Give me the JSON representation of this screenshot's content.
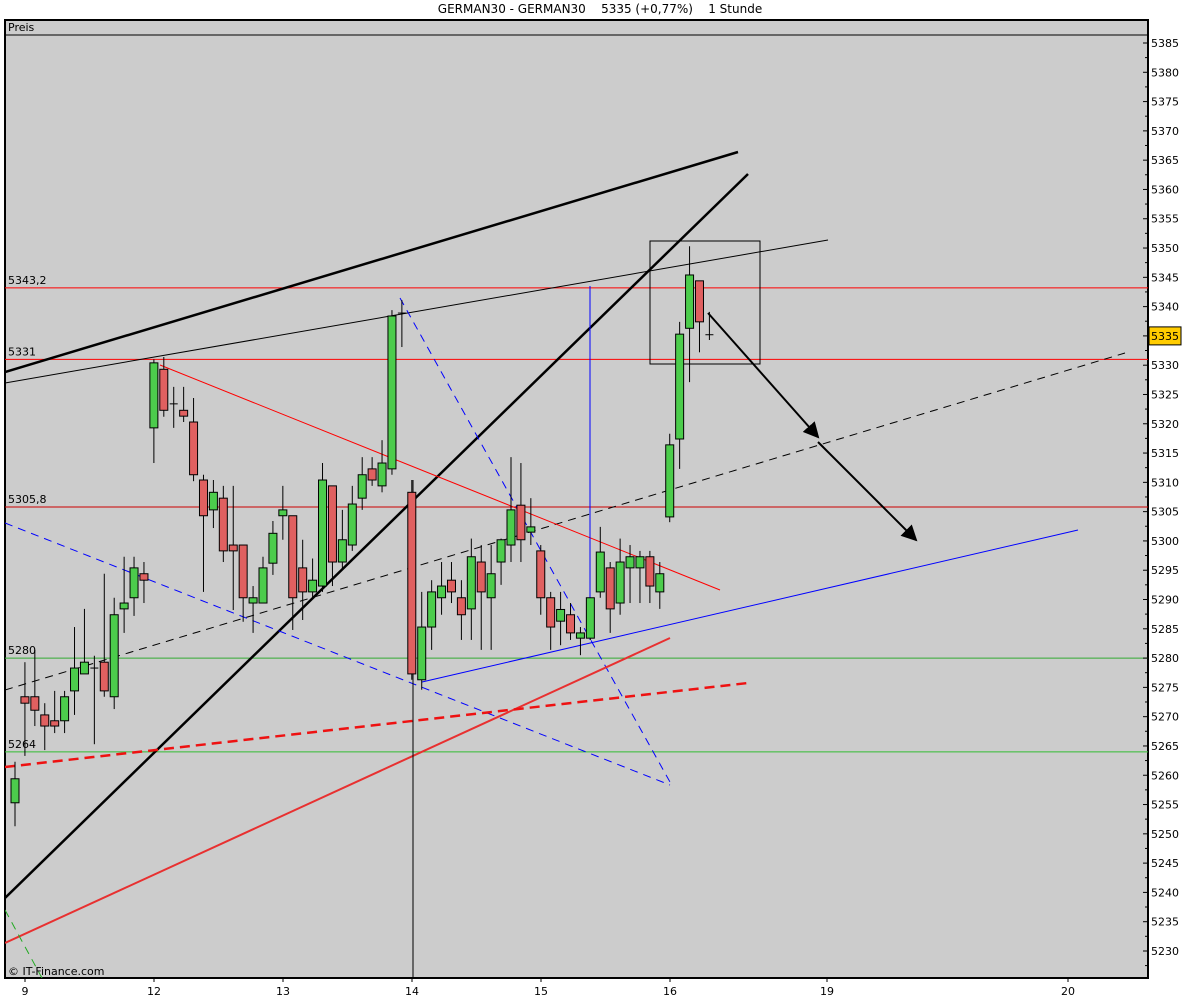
{
  "header": {
    "title": "GERMAN30 - GERMAN30    5335 (+0,77%)    1 Stunde"
  },
  "panel_label": "Preis",
  "copyright": "© IT-Finance.com",
  "colors": {
    "background": "#cccccc",
    "up_candle": "#4ccc4c",
    "down_candle": "#e06060",
    "last_price_badge": "#ffcc00",
    "resistance": "#ff0000",
    "support": "#33aa33",
    "trend_blue": "#0000ff"
  },
  "chart_data": {
    "type": "candlestick",
    "title": "GERMAN30 - GERMAN30",
    "timeframe": "1 Stunde",
    "last_price": "5335",
    "change": "+0,77%",
    "ylim": [
      5226,
      5389
    ],
    "y_ticks": [
      "5385",
      "5380",
      "5375",
      "5370",
      "5365",
      "5360",
      "5355",
      "5350",
      "5345",
      "5340",
      "5335",
      "5330",
      "5325",
      "5320",
      "5315",
      "5310",
      "5305",
      "5300",
      "5295",
      "5290",
      "5285",
      "5280",
      "5275",
      "5270",
      "5265",
      "5260",
      "5255",
      "5250",
      "5245",
      "5240",
      "5235",
      "5230"
    ],
    "x_ticks": [
      "9",
      "12",
      "13",
      "14",
      "15",
      "16",
      "19",
      "20"
    ],
    "grid": false,
    "horizontal_levels": [
      {
        "label": "5343,2",
        "value": 5343.2,
        "color": "#ff0000"
      },
      {
        "label": "5331",
        "value": 5331,
        "color": "#ff0000"
      },
      {
        "label": "5305,8",
        "value": 5305.8,
        "color": "#cc0000"
      },
      {
        "label": "5280",
        "value": 5280,
        "color": "#33aa33"
      },
      {
        "label": "5264",
        "value": 5264,
        "color": "#33bb33"
      }
    ],
    "ohlc": [
      [
        5255.3,
        5262.3,
        5251.3,
        5259.4
      ],
      [
        5273.4,
        5279.3,
        5263.3,
        5272.3
      ],
      [
        5273.4,
        5281.4,
        5268.4,
        5271.1
      ],
      [
        5270.3,
        5272.3,
        5264.3,
        5268.4
      ],
      [
        5269.3,
        5274.4,
        5267.2,
        5268.4
      ],
      [
        5269.3,
        5274.4,
        5267.2,
        5273.4
      ],
      [
        5274.4,
        5285.3,
        5270.3,
        5278.3
      ],
      [
        5277.3,
        5288.4,
        5277.3,
        5279.3
      ],
      [
        5278.3,
        5280.4,
        5265.3,
        5278.3
      ],
      [
        5279.3,
        5294.4,
        5273.4,
        5274.4
      ],
      [
        5273.4,
        5290.3,
        5271.3,
        5287.4
      ],
      [
        5288.4,
        5297.3,
        5284.3,
        5289.4
      ],
      [
        5290.3,
        5297.3,
        5287.2,
        5295.4
      ],
      [
        5294.4,
        5296.4,
        5289.4,
        5293.3
      ],
      [
        5319.3,
        5331.0,
        5313.3,
        5330.4
      ],
      [
        5329.3,
        5331.4,
        5321.2,
        5322.3
      ],
      [
        5323.4,
        5326.3,
        5319.3,
        5323.4
      ],
      [
        5322.3,
        5326.3,
        5320.3,
        5321.3
      ],
      [
        5320.3,
        5324.4,
        5310.2,
        5311.3
      ],
      [
        5310.4,
        5311.3,
        5291.3,
        5304.3
      ],
      [
        5305.3,
        5310.4,
        5302.2,
        5308.3
      ],
      [
        5307.3,
        5309.4,
        5296.4,
        5298.3
      ],
      [
        5299.3,
        5309.4,
        5288.2,
        5298.3
      ],
      [
        5299.3,
        5299.3,
        5286.2,
        5290.3
      ],
      [
        5289.4,
        5292.3,
        5284.3,
        5290.3
      ],
      [
        5289.4,
        5297.3,
        5289.4,
        5295.4
      ],
      [
        5296.2,
        5303.4,
        5294.2,
        5301.3
      ],
      [
        5304.3,
        5309.4,
        5300.2,
        5305.3
      ],
      [
        5304.3,
        5304.3,
        5284.8,
        5290.3
      ],
      [
        5295.4,
        5300.2,
        5286.5,
        5291.3
      ],
      [
        5291.3,
        5297.0,
        5290.0,
        5293.3
      ],
      [
        5292.3,
        5313.3,
        5291.3,
        5310.4
      ],
      [
        5309.4,
        5309.4,
        5292.3,
        5296.4
      ],
      [
        5296.4,
        5305.3,
        5295.2,
        5300.2
      ],
      [
        5299.3,
        5309.4,
        5298.3,
        5306.3
      ],
      [
        5307.3,
        5314.3,
        5305.3,
        5311.3
      ],
      [
        5312.3,
        5314.3,
        5309.4,
        5310.4
      ],
      [
        5309.4,
        5317.2,
        5308.3,
        5313.3
      ],
      [
        5312.3,
        5339.4,
        5311.3,
        5338.4
      ],
      [
        5338.9,
        5341.1,
        5333.1,
        5338.9
      ],
      [
        5308.3,
        5310.4,
        5276.3,
        5277.3
      ],
      [
        5276.3,
        5291.3,
        5274.6,
        5285.3
      ],
      [
        5285.3,
        5293.3,
        5281.4,
        5291.3
      ],
      [
        5290.3,
        5296.4,
        5287.4,
        5292.3
      ],
      [
        5293.3,
        5296.4,
        5289.4,
        5291.3
      ],
      [
        5290.3,
        5293.3,
        5283.1,
        5287.4
      ],
      [
        5288.4,
        5300.4,
        5283.1,
        5297.3
      ],
      [
        5296.4,
        5299.3,
        5281.4,
        5291.3
      ],
      [
        5290.3,
        5299.3,
        5281.4,
        5294.4
      ],
      [
        5296.4,
        5300.4,
        5292.5,
        5300.2
      ],
      [
        5299.3,
        5314.3,
        5296.4,
        5305.3
      ],
      [
        5306.1,
        5313.3,
        5296.4,
        5300.2
      ],
      [
        5301.5,
        5307.3,
        5299.3,
        5302.4
      ],
      [
        5298.3,
        5299.3,
        5287.4,
        5290.3
      ],
      [
        5290.3,
        5291.3,
        5281.4,
        5285.3
      ],
      [
        5286.3,
        5291.3,
        5282.2,
        5288.3
      ],
      [
        5287.4,
        5289.4,
        5283.1,
        5284.3
      ],
      [
        5283.4,
        5285.3,
        5280.5,
        5284.3
      ],
      [
        5283.4,
        5290.3,
        5283.1,
        5290.3
      ],
      [
        5291.3,
        5302.4,
        5290.3,
        5298.1
      ],
      [
        5295.4,
        5296.4,
        5284.3,
        5288.4
      ],
      [
        5289.4,
        5300.4,
        5287.4,
        5296.4
      ],
      [
        5295.4,
        5299.3,
        5289.4,
        5297.3
      ],
      [
        5295.4,
        5298.3,
        5289.4,
        5297.3
      ],
      [
        5297.3,
        5298.3,
        5289.4,
        5292.3
      ],
      [
        5291.3,
        5296.4,
        5288.4,
        5294.4
      ],
      [
        5304.1,
        5318.3,
        5303.2,
        5316.4
      ],
      [
        5317.4,
        5337.4,
        5312.3,
        5335.3
      ],
      [
        5336.3,
        5350.3,
        5327.1,
        5345.4
      ],
      [
        5344.4,
        5344.4,
        5332.2,
        5337.4
      ],
      [
        5335.2,
        5339.1,
        5334.3,
        5335.2
      ]
    ]
  }
}
